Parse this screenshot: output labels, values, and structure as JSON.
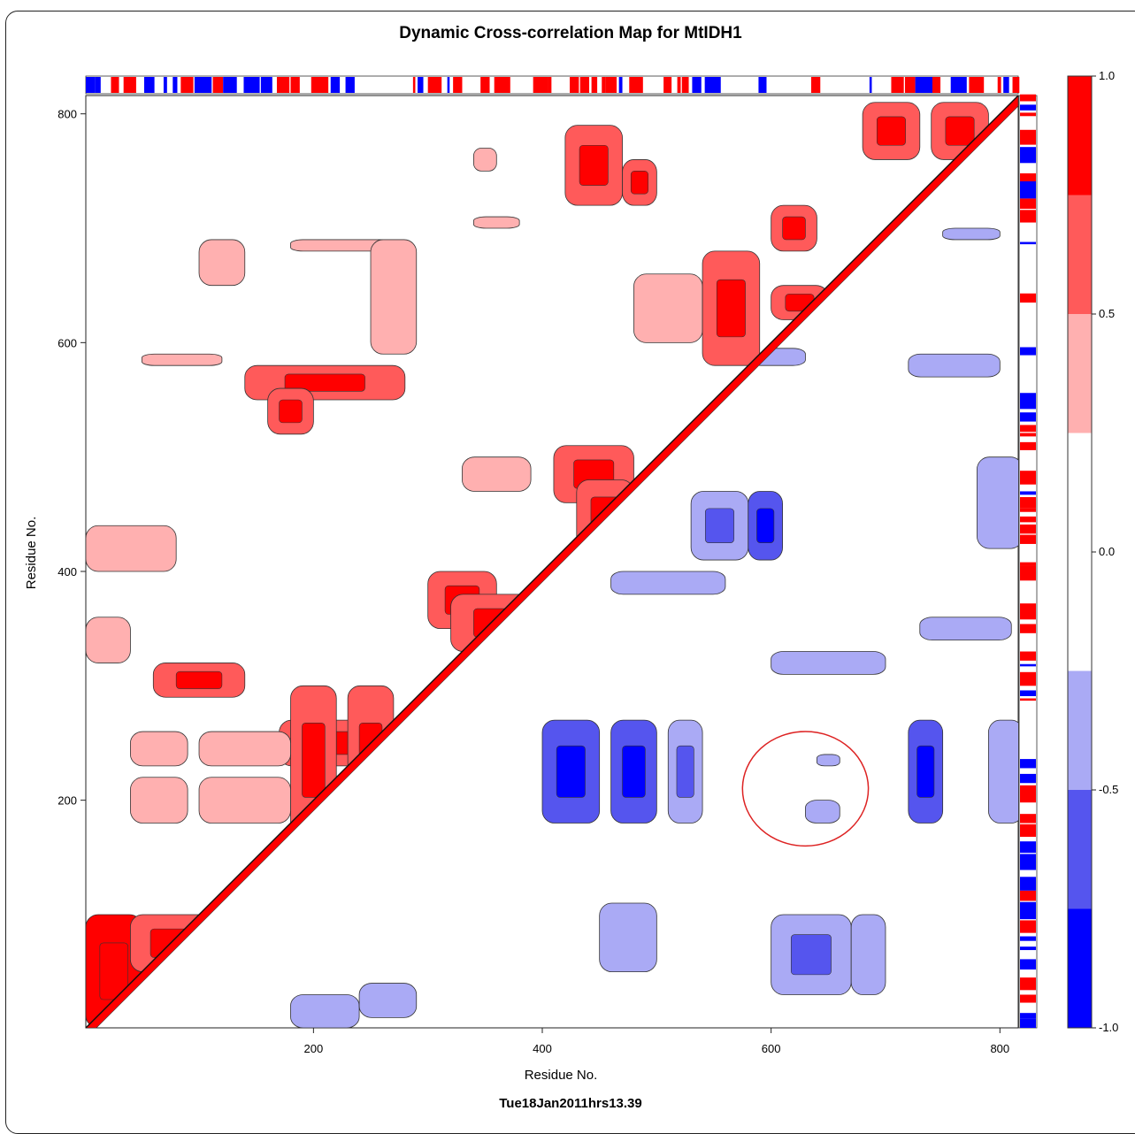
{
  "chart_data": {
    "type": "heatmap",
    "title": "Dynamic Cross-correlation Map for MtIDH1",
    "xlabel": "Residue No.",
    "ylabel": "Residue No.",
    "footer": "Tue18Jan2011hrs13.39",
    "xlim": [
      1,
      816
    ],
    "ylim": [
      1,
      816
    ],
    "x_ticks": [
      "200",
      "400",
      "600",
      "800"
    ],
    "y_ticks": [
      "200",
      "400",
      "600",
      "800"
    ],
    "colorbar": {
      "ticks": [
        "1.0",
        "0.5",
        "0.0",
        "-0.5",
        "-1.0"
      ],
      "levels": [
        {
          "from": 0.75,
          "to": 1.0,
          "color": "#ff0000"
        },
        {
          "from": 0.5,
          "to": 0.75,
          "color": "#ff5a5a"
        },
        {
          "from": 0.25,
          "to": 0.5,
          "color": "#ffb0b0"
        },
        {
          "from": -0.25,
          "to": 0.25,
          "color": "#ffffff"
        },
        {
          "from": -0.5,
          "to": -0.25,
          "color": "#aaaaf5"
        },
        {
          "from": -0.75,
          "to": -0.5,
          "color": "#5555ee"
        },
        {
          "from": -1.0,
          "to": -0.75,
          "color": "#0000ff"
        }
      ]
    },
    "positive_regions": [
      {
        "x": [
          1,
          50
        ],
        "y": [
          1,
          100
        ],
        "v": 0.8
      },
      {
        "x": [
          40,
          110
        ],
        "y": [
          50,
          100
        ],
        "v": 0.6
      },
      {
        "x": [
          170,
          260
        ],
        "y": [
          230,
          270
        ],
        "v": 0.6
      },
      {
        "x": [
          180,
          220
        ],
        "y": [
          170,
          300
        ],
        "v": 0.7
      },
      {
        "x": [
          230,
          270
        ],
        "y": [
          170,
          300
        ],
        "v": 0.6
      },
      {
        "x": [
          40,
          90
        ],
        "y": [
          180,
          220
        ],
        "v": 0.4
      },
      {
        "x": [
          40,
          90
        ],
        "y": [
          230,
          260
        ],
        "v": 0.4
      },
      {
        "x": [
          100,
          180
        ],
        "y": [
          180,
          220
        ],
        "v": 0.4
      },
      {
        "x": [
          100,
          180
        ],
        "y": [
          230,
          260
        ],
        "v": 0.4
      },
      {
        "x": [
          1,
          40
        ],
        "y": [
          320,
          360
        ],
        "v": 0.4
      },
      {
        "x": [
          60,
          140
        ],
        "y": [
          290,
          320
        ],
        "v": 0.5
      },
      {
        "x": [
          1,
          80
        ],
        "y": [
          400,
          440
        ],
        "v": 0.4
      },
      {
        "x": [
          300,
          360
        ],
        "y": [
          350,
          400
        ],
        "v": 0.5
      },
      {
        "x": [
          320,
          400
        ],
        "y": [
          330,
          380
        ],
        "v": 0.6
      },
      {
        "x": [
          410,
          480
        ],
        "y": [
          460,
          510
        ],
        "v": 0.7
      },
      {
        "x": [
          330,
          390
        ],
        "y": [
          470,
          500
        ],
        "v": 0.4
      },
      {
        "x": [
          430,
          480
        ],
        "y": [
          420,
          480
        ],
        "v": 0.6
      },
      {
        "x": [
          140,
          280
        ],
        "y": [
          550,
          580
        ],
        "v": 0.5
      },
      {
        "x": [
          160,
          200
        ],
        "y": [
          520,
          560
        ],
        "v": 0.6
      },
      {
        "x": [
          50,
          120
        ],
        "y": [
          580,
          590
        ],
        "v": 0.4
      },
      {
        "x": [
          100,
          140
        ],
        "y": [
          650,
          690
        ],
        "v": 0.4
      },
      {
        "x": [
          180,
          280
        ],
        "y": [
          680,
          690
        ],
        "v": 0.4
      },
      {
        "x": [
          250,
          290
        ],
        "y": [
          590,
          690
        ],
        "v": 0.4
      },
      {
        "x": [
          420,
          470
        ],
        "y": [
          720,
          790
        ],
        "v": 0.6
      },
      {
        "x": [
          470,
          500
        ],
        "y": [
          720,
          760
        ],
        "v": 0.5
      },
      {
        "x": [
          480,
          540
        ],
        "y": [
          600,
          660
        ],
        "v": 0.4
      },
      {
        "x": [
          540,
          590
        ],
        "y": [
          580,
          680
        ],
        "v": 0.6
      },
      {
        "x": [
          600,
          640
        ],
        "y": [
          680,
          720
        ],
        "v": 0.6
      },
      {
        "x": [
          600,
          650
        ],
        "y": [
          620,
          650
        ],
        "v": 0.7
      },
      {
        "x": [
          680,
          730
        ],
        "y": [
          760,
          810
        ],
        "v": 0.6
      },
      {
        "x": [
          740,
          790
        ],
        "y": [
          760,
          810
        ],
        "v": 0.5
      },
      {
        "x": [
          340,
          360
        ],
        "y": [
          750,
          770
        ],
        "v": 0.4
      },
      {
        "x": [
          340,
          380
        ],
        "y": [
          700,
          710
        ],
        "v": 0.4
      }
    ],
    "negative_regions": [
      {
        "x": [
          400,
          450
        ],
        "y": [
          180,
          270
        ],
        "v": -0.6
      },
      {
        "x": [
          460,
          500
        ],
        "y": [
          180,
          270
        ],
        "v": -0.6
      },
      {
        "x": [
          510,
          540
        ],
        "y": [
          180,
          270
        ],
        "v": -0.5
      },
      {
        "x": [
          720,
          750
        ],
        "y": [
          180,
          270
        ],
        "v": -0.6
      },
      {
        "x": [
          790,
          820
        ],
        "y": [
          180,
          270
        ],
        "v": -0.4
      },
      {
        "x": [
          450,
          500
        ],
        "y": [
          50,
          110
        ],
        "v": -0.4
      },
      {
        "x": [
          600,
          670
        ],
        "y": [
          30,
          100
        ],
        "v": -0.5
      },
      {
        "x": [
          670,
          700
        ],
        "y": [
          30,
          100
        ],
        "v": -0.4
      },
      {
        "x": [
          530,
          580
        ],
        "y": [
          410,
          470
        ],
        "v": -0.5
      },
      {
        "x": [
          580,
          610
        ],
        "y": [
          410,
          470
        ],
        "v": -0.6
      },
      {
        "x": [
          600,
          700
        ],
        "y": [
          310,
          330
        ],
        "v": -0.4
      },
      {
        "x": [
          730,
          810
        ],
        "y": [
          340,
          360
        ],
        "v": -0.4
      },
      {
        "x": [
          460,
          560
        ],
        "y": [
          380,
          400
        ],
        "v": -0.4
      },
      {
        "x": [
          720,
          800
        ],
        "y": [
          570,
          590
        ],
        "v": -0.4
      },
      {
        "x": [
          780,
          820
        ],
        "y": [
          420,
          500
        ],
        "v": -0.4
      },
      {
        "x": [
          180,
          240
        ],
        "y": [
          1,
          30
        ],
        "v": -0.4
      },
      {
        "x": [
          240,
          290
        ],
        "y": [
          10,
          40
        ],
        "v": -0.4
      },
      {
        "x": [
          580,
          630
        ],
        "y": [
          580,
          595
        ],
        "v": -0.4
      },
      {
        "x": [
          750,
          800
        ],
        "y": [
          690,
          700
        ],
        "v": -0.4
      },
      {
        "x": [
          630,
          660
        ],
        "y": [
          180,
          200
        ],
        "v": -0.4
      },
      {
        "x": [
          640,
          660
        ],
        "y": [
          230,
          240
        ],
        "v": -0.4
      }
    ],
    "annotation": {
      "type": "circle",
      "x": 630,
      "y": 210,
      "rx": 55,
      "ry": 50,
      "color": "#dd2222"
    }
  }
}
